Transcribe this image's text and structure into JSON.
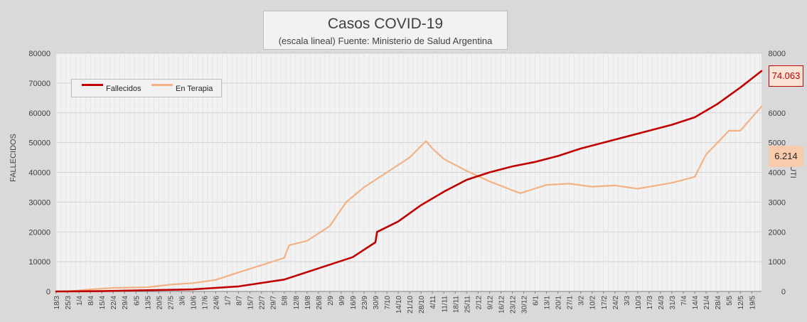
{
  "chart_data": {
    "type": "line",
    "title": "Casos COVID-19",
    "subtitle": "(escala lineal) Fuente: Ministerio de Salud Argentina",
    "ylabel": "FALLECIDOS",
    "y2label": "UTI",
    "ylim": [
      0,
      80000
    ],
    "y2lim": [
      0,
      8000
    ],
    "y_ticks": [
      0,
      10000,
      20000,
      30000,
      40000,
      50000,
      60000,
      70000,
      80000
    ],
    "y2_ticks": [
      0,
      1000,
      2000,
      3000,
      4000,
      5000,
      6000,
      7000,
      8000
    ],
    "grid": true,
    "legend_position": "top-left",
    "x_dates": [
      "2020-03-18",
      "2021-05-25"
    ],
    "x_tick_labels": [
      "18/3",
      "25/3",
      "1/4",
      "8/4",
      "15/4",
      "22/4",
      "29/4",
      "6/5",
      "13/5",
      "20/5",
      "27/5",
      "3/6",
      "10/6",
      "17/6",
      "24/6",
      "1/7",
      "8/7",
      "15/7",
      "22/7",
      "29/7",
      "5/8",
      "12/8",
      "19/8",
      "26/8",
      "2/9",
      "9/9",
      "16/9",
      "23/9",
      "30/9",
      "7/10",
      "14/10",
      "21/10",
      "28/10",
      "4/11",
      "11/11",
      "18/11",
      "25/11",
      "2/12",
      "9/12",
      "16/12",
      "23/12",
      "30/12",
      "6/1",
      "13/1",
      "20/1",
      "27/1",
      "3/2",
      "10/2",
      "17/2",
      "24/2",
      "3/3",
      "10/3",
      "17/3",
      "24/3",
      "31/3",
      "7/4",
      "14/4",
      "21/4",
      "28/4",
      "5/5",
      "12/5",
      "19/5"
    ],
    "series": [
      {
        "name": "Fallecidos",
        "axis": "left",
        "color": "#c00000",
        "points": [
          [
            "2020-03-18",
            0
          ],
          [
            "2020-04-15",
            100
          ],
          [
            "2020-05-13",
            400
          ],
          [
            "2020-06-10",
            700
          ],
          [
            "2020-07-08",
            1700
          ],
          [
            "2020-08-05",
            4000
          ],
          [
            "2020-09-02",
            9000
          ],
          [
            "2020-09-16",
            11500
          ],
          [
            "2020-09-30",
            16500
          ],
          [
            "2020-10-01",
            20000
          ],
          [
            "2020-10-14",
            23500
          ],
          [
            "2020-10-28",
            29000
          ],
          [
            "2020-11-11",
            33500
          ],
          [
            "2020-11-25",
            37500
          ],
          [
            "2020-12-09",
            40000
          ],
          [
            "2020-12-23",
            42000
          ],
          [
            "2021-01-06",
            43500
          ],
          [
            "2021-01-20",
            45500
          ],
          [
            "2021-02-03",
            48000
          ],
          [
            "2021-02-17",
            50000
          ],
          [
            "2021-03-03",
            52000
          ],
          [
            "2021-03-17",
            54000
          ],
          [
            "2021-03-31",
            56000
          ],
          [
            "2021-04-14",
            58500
          ],
          [
            "2021-04-28",
            63000
          ],
          [
            "2021-05-12",
            68500
          ],
          [
            "2021-05-25",
            74063
          ]
        ]
      },
      {
        "name": "En Terapia",
        "axis": "right",
        "color": "#f4b183",
        "points": [
          [
            "2020-03-18",
            0
          ],
          [
            "2020-03-25",
            0
          ],
          [
            "2020-04-08",
            70
          ],
          [
            "2020-04-22",
            120
          ],
          [
            "2020-05-13",
            140
          ],
          [
            "2020-05-27",
            230
          ],
          [
            "2020-06-10",
            280
          ],
          [
            "2020-06-24",
            390
          ],
          [
            "2020-07-08",
            640
          ],
          [
            "2020-07-22",
            880
          ],
          [
            "2020-08-05",
            1130
          ],
          [
            "2020-08-08",
            1550
          ],
          [
            "2020-08-19",
            1700
          ],
          [
            "2020-09-02",
            2200
          ],
          [
            "2020-09-12",
            3000
          ],
          [
            "2020-09-23",
            3500
          ],
          [
            "2020-10-07",
            4000
          ],
          [
            "2020-10-21",
            4500
          ],
          [
            "2020-10-31",
            5050
          ],
          [
            "2020-11-04",
            4800
          ],
          [
            "2020-11-11",
            4450
          ],
          [
            "2020-11-25",
            4050
          ],
          [
            "2020-12-09",
            3700
          ],
          [
            "2020-12-23",
            3400
          ],
          [
            "2020-12-28",
            3300
          ],
          [
            "2021-01-13",
            3580
          ],
          [
            "2021-01-27",
            3620
          ],
          [
            "2021-02-10",
            3520
          ],
          [
            "2021-02-24",
            3560
          ],
          [
            "2021-03-10",
            3450
          ],
          [
            "2021-03-31",
            3650
          ],
          [
            "2021-04-14",
            3850
          ],
          [
            "2021-04-21",
            4600
          ],
          [
            "2021-05-05",
            5400
          ],
          [
            "2021-05-12",
            5400
          ],
          [
            "2021-05-25",
            6214
          ]
        ]
      }
    ],
    "annotations": [
      "74.063",
      "6.214"
    ]
  }
}
